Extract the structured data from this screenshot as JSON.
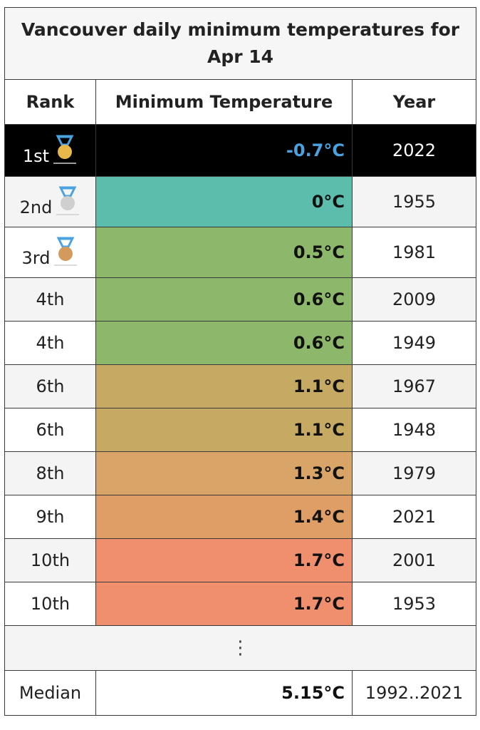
{
  "chart_data": {
    "type": "table",
    "title": "Vancouver daily minimum temperatures for Apr 14",
    "columns": [
      "Rank",
      "Minimum Temperature",
      "Year"
    ],
    "rows": [
      {
        "rank": "1st",
        "medal": "gold-medal-icon",
        "temp": "-0.7°C",
        "value": -0.7,
        "year": "2022",
        "color": "#000000"
      },
      {
        "rank": "2nd",
        "medal": "silver-medal-icon",
        "temp": "0°C",
        "value": 0,
        "year": "1955",
        "color": "#5dbdad"
      },
      {
        "rank": "3rd",
        "medal": "bronze-medal-icon",
        "temp": "0.5°C",
        "value": 0.5,
        "year": "1981",
        "color": "#8db86b"
      },
      {
        "rank": "4th",
        "temp": "0.6°C",
        "value": 0.6,
        "year": "2009",
        "color": "#8db86b"
      },
      {
        "rank": "4th",
        "temp": "0.6°C",
        "value": 0.6,
        "year": "1949",
        "color": "#8db86b"
      },
      {
        "rank": "6th",
        "temp": "1.1°C",
        "value": 1.1,
        "year": "1967",
        "color": "#c6a962"
      },
      {
        "rank": "6th",
        "temp": "1.1°C",
        "value": 1.1,
        "year": "1948",
        "color": "#c6a962"
      },
      {
        "rank": "8th",
        "temp": "1.3°C",
        "value": 1.3,
        "year": "1979",
        "color": "#d8a468"
      },
      {
        "rank": "9th",
        "temp": "1.4°C",
        "value": 1.4,
        "year": "2021",
        "color": "#e09e67"
      },
      {
        "rank": "10th",
        "temp": "1.7°C",
        "value": 1.7,
        "year": "2001",
        "color": "#f08f6e"
      },
      {
        "rank": "10th",
        "temp": "1.7°C",
        "value": 1.7,
        "year": "1953",
        "color": "#f08f6e"
      }
    ],
    "ellipsis": "⋮",
    "median": {
      "label": "Median",
      "temp": "5.15°C",
      "value": 5.15,
      "years": "1992..2021"
    }
  },
  "medal_colors": {
    "gold": "#e8b84a",
    "silver": "#cfcfcf",
    "bronze": "#d49a5c",
    "ribbon": "#4aa3e0"
  }
}
